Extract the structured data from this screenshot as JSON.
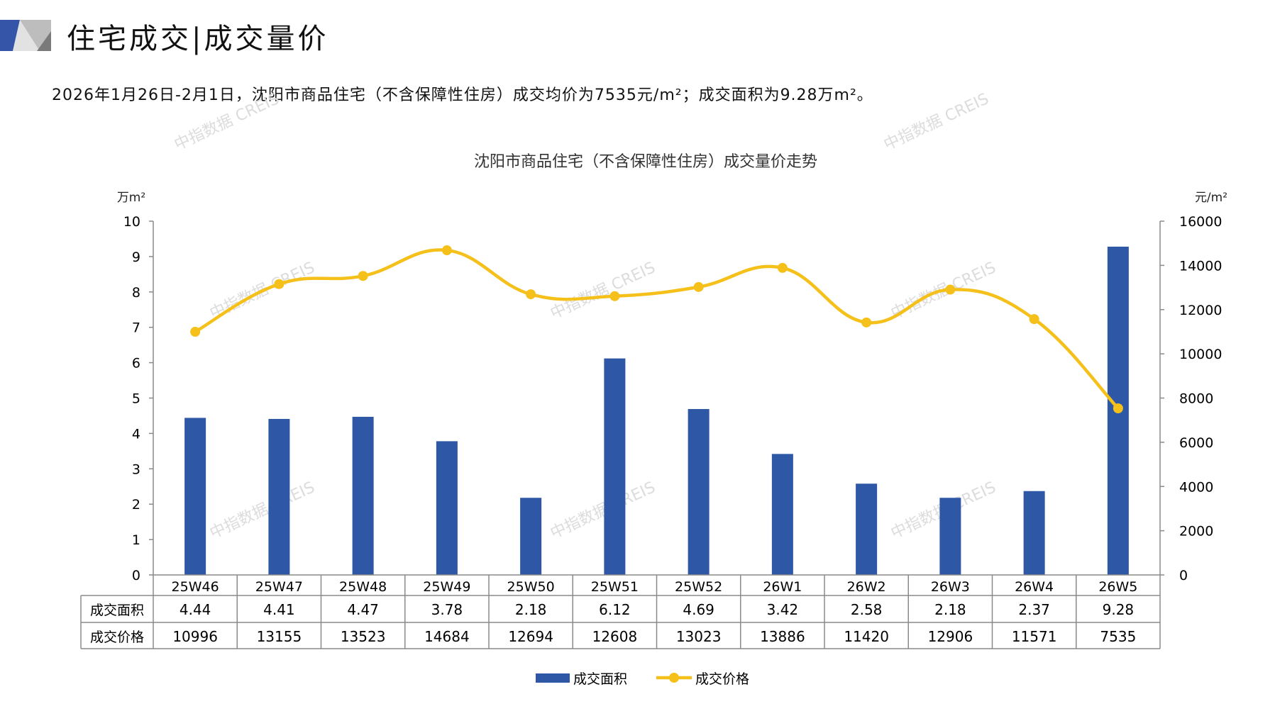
{
  "header": {
    "title": "住宅成交|成交量价",
    "subtitle": "2026年1月26日-2月1日，沈阳市商品住宅（不含保障性住房）成交均价为7535元/m²；成交面积为9.28万m²。"
  },
  "watermark": "中指数据 CREIS",
  "colors": {
    "bar": "#2e58a6",
    "line": "#f5c01a",
    "grid": "#8a8a8a"
  },
  "chart_data": {
    "type": "bar",
    "title": "沈阳市商品住宅（不含保障性住房）成交量价走势",
    "categories": [
      "25W46",
      "25W47",
      "25W48",
      "25W49",
      "25W50",
      "25W51",
      "25W52",
      "26W1",
      "26W2",
      "26W3",
      "26W4",
      "26W5"
    ],
    "series": [
      {
        "name": "成交面积",
        "type": "bar",
        "axis": "left",
        "values": [
          4.44,
          4.41,
          4.47,
          3.78,
          2.18,
          6.12,
          4.69,
          3.42,
          2.58,
          2.18,
          2.37,
          9.28
        ]
      },
      {
        "name": "成交价格",
        "type": "line",
        "axis": "right",
        "values": [
          10996,
          13155,
          13523,
          14684,
          12694,
          12608,
          13023,
          13886,
          11420,
          12906,
          11571,
          7535
        ]
      }
    ],
    "value_labels": {
      "area": [
        "4.44",
        "4.41",
        "4.47",
        "3.78",
        "2.18",
        "6.12",
        "4.69",
        "3.42",
        "2.58",
        "2.18",
        "2.37",
        "9.28"
      ],
      "price": [
        "10996",
        "13155",
        "13523",
        "14684",
        "12694",
        "12608",
        "13023",
        "13886",
        "11420",
        "12906",
        "11571",
        "7535"
      ]
    },
    "ylabel_left": "万m²",
    "ylabel_right": "元/m²",
    "ylim_left": [
      0,
      10
    ],
    "ylim_right": [
      0,
      16000
    ],
    "yticks_left": [
      "0",
      "1",
      "2",
      "3",
      "4",
      "5",
      "6",
      "7",
      "8",
      "9",
      "10"
    ],
    "yticks_right": [
      "0",
      "2000",
      "4000",
      "6000",
      "8000",
      "10000",
      "12000",
      "14000",
      "16000"
    ],
    "legend": [
      "成交面积",
      "成交价格"
    ],
    "legend_position": "bottom",
    "grid": false
  }
}
